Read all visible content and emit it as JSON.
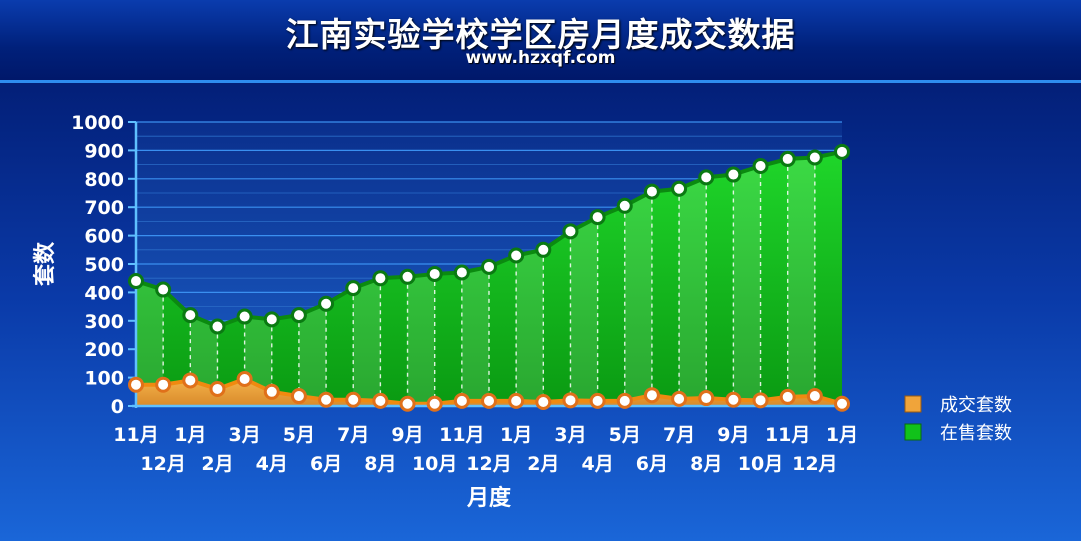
{
  "header": {
    "title": "江南实验学校学区房月度成交数据",
    "subtitle": "www.hzxqf.com"
  },
  "colors": {
    "sold_fill": "#e8a640",
    "sold_line": "#f08a10",
    "onsale_fill": "#11c21a",
    "onsale_line": "#0b8a10",
    "marker_fill": "#ffffff"
  },
  "chart_data": {
    "type": "area",
    "title": "江南实验学校学区房月度成交数据",
    "xlabel": "月度",
    "ylabel": "套数",
    "ylim": [
      0,
      1000
    ],
    "yticks": [
      0,
      100,
      200,
      300,
      400,
      500,
      600,
      700,
      800,
      900,
      1000
    ],
    "grid": true,
    "legend_position": "right",
    "categories": [
      "11月",
      "12月",
      "1月",
      "2月",
      "3月",
      "4月",
      "5月",
      "6月",
      "7月",
      "8月",
      "9月",
      "10月",
      "11月",
      "12月",
      "1月",
      "2月",
      "3月",
      "4月",
      "5月",
      "6月",
      "7月",
      "8月",
      "9月",
      "10月",
      "11月",
      "12月",
      "1月"
    ],
    "series": [
      {
        "name": "成交套数",
        "values": [
          75,
          75,
          90,
          60,
          95,
          50,
          35,
          22,
          22,
          18,
          8,
          8,
          18,
          18,
          18,
          14,
          20,
          18,
          18,
          38,
          25,
          28,
          22,
          20,
          32,
          35,
          8
        ]
      },
      {
        "name": "在售套数",
        "values": [
          440,
          410,
          320,
          280,
          315,
          305,
          320,
          360,
          415,
          450,
          455,
          465,
          470,
          490,
          530,
          550,
          615,
          665,
          705,
          755,
          765,
          805,
          815,
          845,
          870,
          875,
          895
        ]
      }
    ]
  }
}
